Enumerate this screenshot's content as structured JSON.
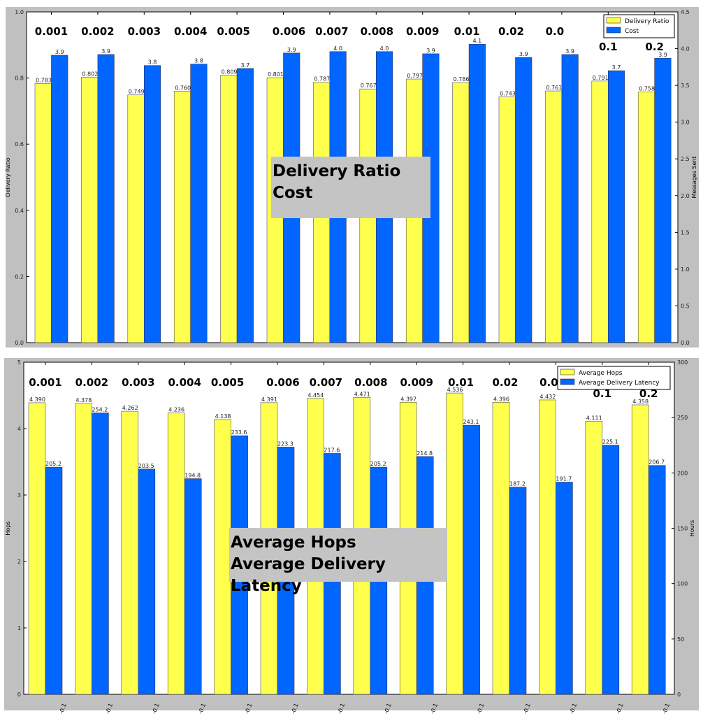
{
  "colors": {
    "primary": "#ffff4d",
    "secondary": "#0066ff",
    "panel": "#c0c0c0"
  },
  "chart_data": [
    {
      "type": "bar",
      "categories": [
        "0.001",
        "0.002",
        "0.003",
        "0.004",
        "0.005",
        "0.006",
        "0.007",
        "0.008",
        "0.009",
        "0.01",
        "0.02",
        "0.0",
        "0.1",
        "0.2"
      ],
      "overlay_title": [
        "Delivery Ratio",
        "Cost"
      ],
      "ylabel": "Delivery Ratio",
      "y2label": "Messages Sent",
      "ylim": [
        0,
        1.0
      ],
      "y2lim": [
        0,
        4.5
      ],
      "yticks": [
        "0.0",
        "0.2",
        "0.4",
        "0.6",
        "0.8",
        "1.0"
      ],
      "y2ticks": [
        "0.0",
        "0.5",
        "1.0",
        "1.5",
        "2.0",
        "2.5",
        "3.0",
        "3.5",
        "4.0",
        "4.5"
      ],
      "legend": "top-right",
      "series": [
        {
          "name": "Delivery Ratio",
          "axis": "left",
          "values": [
            0.783,
            0.802,
            0.749,
            0.76,
            0.809,
            0.801,
            0.787,
            0.767,
            0.797,
            0.786,
            0.743,
            0.761,
            0.791,
            0.758
          ],
          "labels": [
            "0.783",
            "0.802",
            "0.749",
            "0.760",
            "0.809",
            "0.801",
            "0.787",
            "0.767",
            "0.797",
            "0.786",
            "0.743",
            "0.761",
            "0.791",
            "0.758"
          ]
        },
        {
          "name": "Cost",
          "axis": "right",
          "values": [
            3.91,
            3.92,
            3.77,
            3.79,
            3.73,
            3.94,
            3.96,
            3.96,
            3.93,
            4.06,
            3.88,
            3.92,
            3.7,
            3.87
          ],
          "labels": [
            "3.9",
            "3.9",
            "3.8",
            "3.8",
            "3.7",
            "3.9",
            "4.0",
            "4.0",
            "3.9",
            "4.1",
            "3.9",
            "3.9",
            "3.7",
            "3.9"
          ]
        }
      ]
    },
    {
      "type": "bar",
      "categories": [
        "0.001",
        "0.002",
        "0.003",
        "0.004",
        "0.005",
        "0.006",
        "0.007",
        "0.008",
        "0.009",
        "0.01",
        "0.02",
        "0.0",
        "0.1",
        "0.2"
      ],
      "xticklabel": "-0.1",
      "overlay_title": [
        "Average Hops",
        "Average Delivery Latency"
      ],
      "ylabel": "Hops",
      "y2label": "Hours",
      "ylim": [
        0,
        5
      ],
      "y2lim": [
        0,
        300
      ],
      "yticks": [
        "0",
        "1",
        "2",
        "3",
        "4",
        "5"
      ],
      "y2ticks": [
        "0",
        "50",
        "100",
        "150",
        "200",
        "250",
        "300"
      ],
      "legend": "top-right",
      "series": [
        {
          "name": "Average Hops",
          "axis": "left",
          "values": [
            4.39,
            4.378,
            4.262,
            4.236,
            4.138,
            4.391,
            4.454,
            4.471,
            4.397,
            4.536,
            4.396,
            4.432,
            4.111,
            4.358
          ],
          "labels": [
            "4.390",
            "4.378",
            "4.262",
            "4.236",
            "4.138",
            "4.391",
            "4.454",
            "4.471",
            "4.397",
            "4.536",
            "4.396",
            "4.432",
            "4.111",
            "4.358"
          ]
        },
        {
          "name": "Average Delivery Latency",
          "axis": "right",
          "values": [
            205.2,
            254.2,
            203.5,
            194.8,
            233.6,
            223.3,
            217.6,
            205.2,
            214.8,
            243.1,
            187.2,
            191.7,
            225.1,
            206.7
          ],
          "labels": [
            "205.2",
            "254.2",
            "203.5",
            "194.8",
            "233.6",
            "223.3",
            "217.6",
            "205.2",
            "214.8",
            "243.1",
            "187.2",
            "191.7",
            "225.1",
            "206.7"
          ]
        }
      ]
    }
  ]
}
